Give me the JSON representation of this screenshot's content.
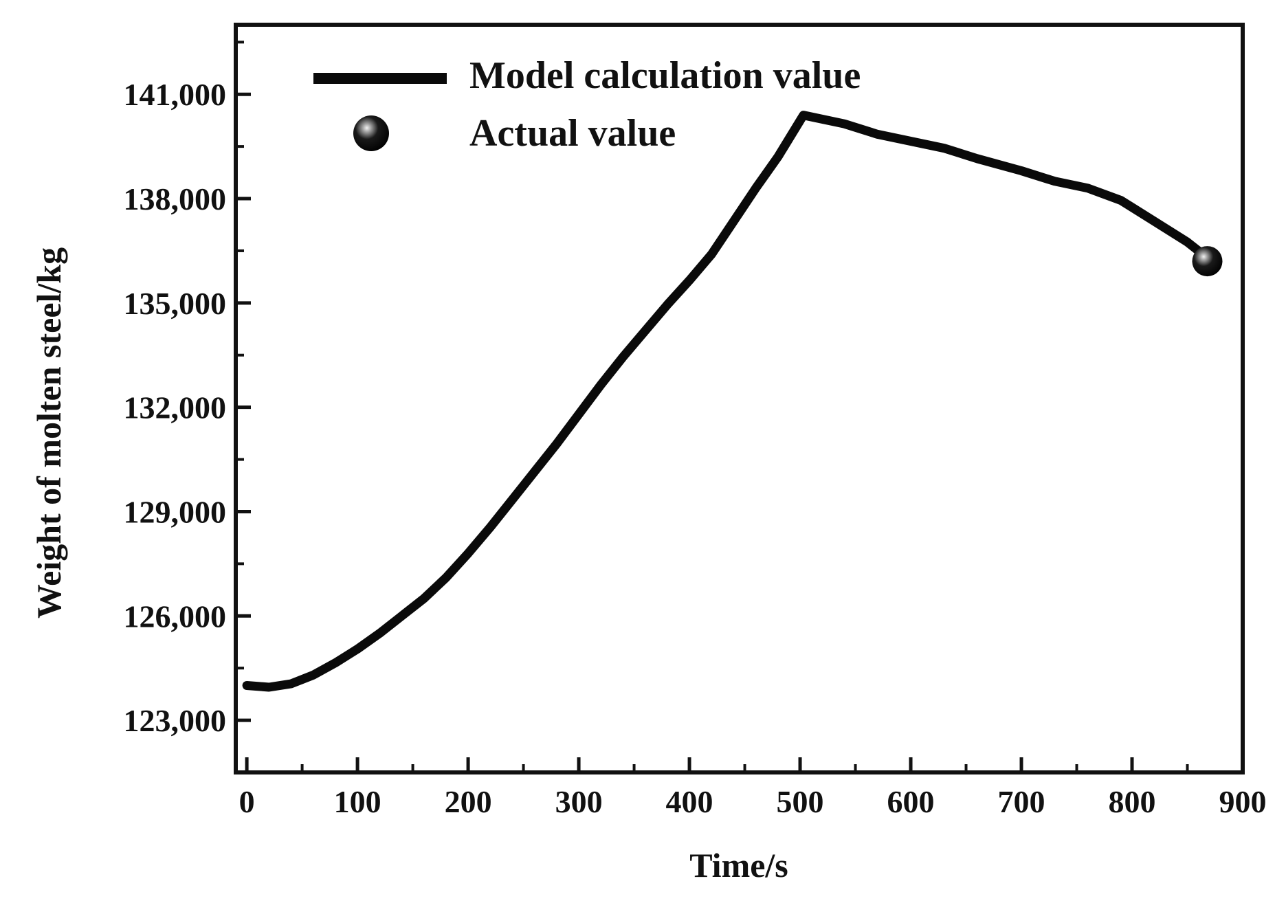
{
  "chart_data": {
    "type": "line",
    "title": "",
    "xlabel": "Time/s",
    "ylabel": "Weight of molten steel/kg",
    "xlim": [
      -10,
      900
    ],
    "ylim": [
      121500,
      143000
    ],
    "xticks": [
      0,
      100,
      200,
      300,
      400,
      500,
      600,
      700,
      800,
      900
    ],
    "xtick_labels": [
      "0",
      "100",
      "200",
      "300",
      "400",
      "500",
      "600",
      "700",
      "800",
      "900"
    ],
    "yticks": [
      123000,
      126000,
      129000,
      132000,
      135000,
      138000,
      141000
    ],
    "ytick_labels": [
      "123,000",
      "126,000",
      "129,000",
      "132,000",
      "135,000",
      "138,000",
      "141,000"
    ],
    "grid": false,
    "legend_position": "top-left",
    "series": [
      {
        "name": "Model calculation value",
        "style": "line",
        "x": [
          0,
          20,
          40,
          60,
          80,
          100,
          120,
          140,
          160,
          180,
          200,
          220,
          240,
          260,
          280,
          300,
          320,
          340,
          360,
          380,
          400,
          420,
          440,
          460,
          480,
          503,
          540,
          570,
          600,
          630,
          660,
          700,
          730,
          760,
          790,
          820,
          850,
          868
        ],
        "y": [
          124000,
          123950,
          124050,
          124300,
          124650,
          125050,
          125500,
          126000,
          126500,
          127100,
          127800,
          128550,
          129350,
          130150,
          130950,
          131800,
          132650,
          133450,
          134200,
          134950,
          135650,
          136400,
          137350,
          138300,
          139200,
          140400,
          140150,
          139850,
          139650,
          139450,
          139150,
          138800,
          138500,
          138300,
          137950,
          137350,
          136750,
          136300
        ]
      },
      {
        "name": "Actual value",
        "style": "marker",
        "x": [
          868
        ],
        "y": [
          136200
        ]
      }
    ]
  },
  "colors": {
    "line": "#0a0a0a",
    "axis": "#111111",
    "marker": "#050505",
    "marker_highlight": "#e8e8e8"
  }
}
